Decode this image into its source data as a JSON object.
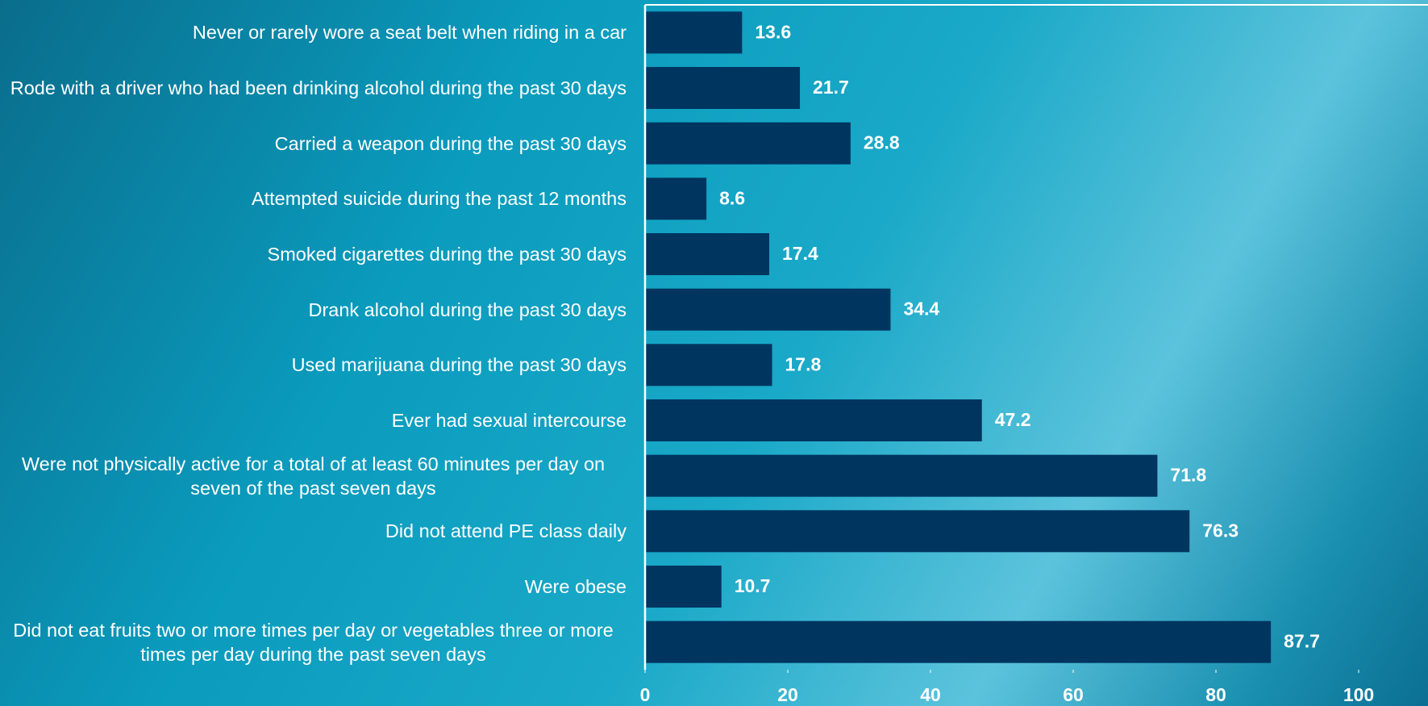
{
  "chart_data": {
    "type": "bar",
    "orientation": "horizontal",
    "categories": [
      "Never or rarely wore a seat belt when riding in a car",
      "Rode with a driver who had been drinking alcohol during the past 30 days",
      "Carried a weapon during the past 30 days",
      "Attempted suicide during the past 12 months",
      "Smoked cigarettes during the past 30 days",
      "Drank alcohol during the past 30 days",
      "Used marijuana during the past 30 days",
      "Ever had sexual intercourse",
      "Were not physically active for a total of at least 60 minutes per day on seven of the past seven days",
      "Did not attend PE class daily",
      "Were obese",
      "Did not eat fruits two or more times per day or vegetables three or more times per day during the past seven days"
    ],
    "values": [
      13.6,
      21.7,
      28.8,
      8.6,
      17.4,
      34.4,
      17.8,
      47.2,
      71.8,
      76.3,
      10.7,
      87.7
    ],
    "color": "#003560",
    "xlim": [
      0,
      100
    ],
    "xticks": [
      0,
      20,
      40,
      60,
      80,
      100
    ],
    "grid": false
  }
}
